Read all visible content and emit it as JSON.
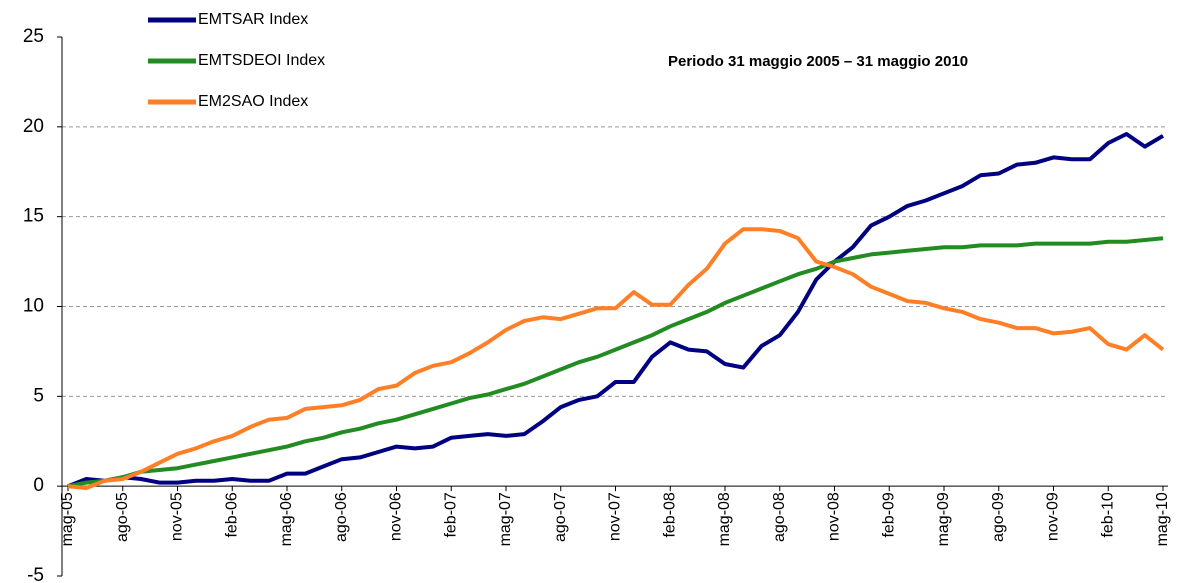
{
  "chart_data": {
    "type": "line",
    "annotation": "Periodo 31 maggio 2005 – 31 maggio 2010",
    "categories": [
      "mag-05",
      null,
      null,
      "ago-05",
      null,
      null,
      "nov-05",
      null,
      null,
      "feb-06",
      null,
      null,
      "mag-06",
      null,
      null,
      "ago-06",
      null,
      null,
      "nov-06",
      null,
      null,
      "feb-07",
      null,
      null,
      "mag-07",
      null,
      null,
      "ago-07",
      null,
      null,
      "nov-07",
      null,
      null,
      "feb-08",
      null,
      null,
      "mag-08",
      null,
      null,
      "ago-08",
      null,
      null,
      "nov-08",
      null,
      null,
      "feb-09",
      null,
      null,
      "mag-09",
      null,
      null,
      "ago-09",
      null,
      null,
      "nov-09",
      null,
      null,
      "feb-10",
      null,
      null,
      "mag-10"
    ],
    "series": [
      {
        "name": "EMTSAR Index",
        "color": "#000080",
        "values": [
          0,
          0.4,
          0.3,
          0.5,
          0.4,
          0.2,
          0.2,
          0.3,
          0.3,
          0.4,
          0.3,
          0.3,
          0.7,
          0.7,
          1.1,
          1.5,
          1.6,
          1.9,
          2.2,
          2.1,
          2.2,
          2.7,
          2.8,
          2.9,
          2.8,
          2.9,
          3.6,
          4.4,
          4.8,
          5.0,
          5.8,
          5.8,
          7.2,
          8.0,
          7.6,
          7.5,
          6.8,
          6.6,
          7.8,
          8.4,
          9.7,
          11.5,
          12.5,
          13.3,
          14.5,
          15.0,
          15.6,
          15.9,
          16.3,
          16.7,
          17.3,
          17.4,
          17.9,
          18.0,
          18.3,
          18.2,
          18.2,
          19.1,
          19.6,
          18.9,
          19.5
        ]
      },
      {
        "name": "EMTSDEOI Index",
        "color": "#228b22",
        "values": [
          0,
          0.2,
          0.3,
          0.5,
          0.8,
          0.9,
          1.0,
          1.2,
          1.4,
          1.6,
          1.8,
          2.0,
          2.2,
          2.5,
          2.7,
          3.0,
          3.2,
          3.5,
          3.7,
          4.0,
          4.3,
          4.6,
          4.9,
          5.1,
          5.4,
          5.7,
          6.1,
          6.5,
          6.9,
          7.2,
          7.6,
          8.0,
          8.4,
          8.9,
          9.3,
          9.7,
          10.2,
          10.6,
          11.0,
          11.4,
          11.8,
          12.1,
          12.5,
          12.7,
          12.9,
          13.0,
          13.1,
          13.2,
          13.3,
          13.3,
          13.4,
          13.4,
          13.4,
          13.5,
          13.5,
          13.5,
          13.5,
          13.6,
          13.6,
          13.7,
          13.8
        ]
      },
      {
        "name": "EM2SAO Index",
        "color": "#ff7f27",
        "values": [
          0,
          -0.1,
          0.3,
          0.4,
          0.8,
          1.3,
          1.8,
          2.1,
          2.5,
          2.8,
          3.3,
          3.7,
          3.8,
          4.3,
          4.4,
          4.5,
          4.8,
          5.4,
          5.6,
          6.3,
          6.7,
          6.9,
          7.4,
          8.0,
          8.7,
          9.2,
          9.4,
          9.3,
          9.6,
          9.9,
          9.9,
          10.8,
          10.1,
          10.1,
          11.2,
          12.1,
          13.5,
          14.3,
          14.3,
          14.2,
          13.8,
          12.5,
          12.2,
          11.8,
          11.1,
          10.7,
          10.3,
          10.2,
          9.9,
          9.7,
          9.3,
          9.1,
          8.8,
          8.8,
          8.5,
          8.6,
          8.8,
          7.9,
          7.6,
          8.4,
          7.6
        ]
      }
    ],
    "ylim": [
      -5,
      25
    ],
    "yticks": [
      -5,
      0,
      5,
      10,
      15,
      20,
      25
    ],
    "grid": true
  }
}
